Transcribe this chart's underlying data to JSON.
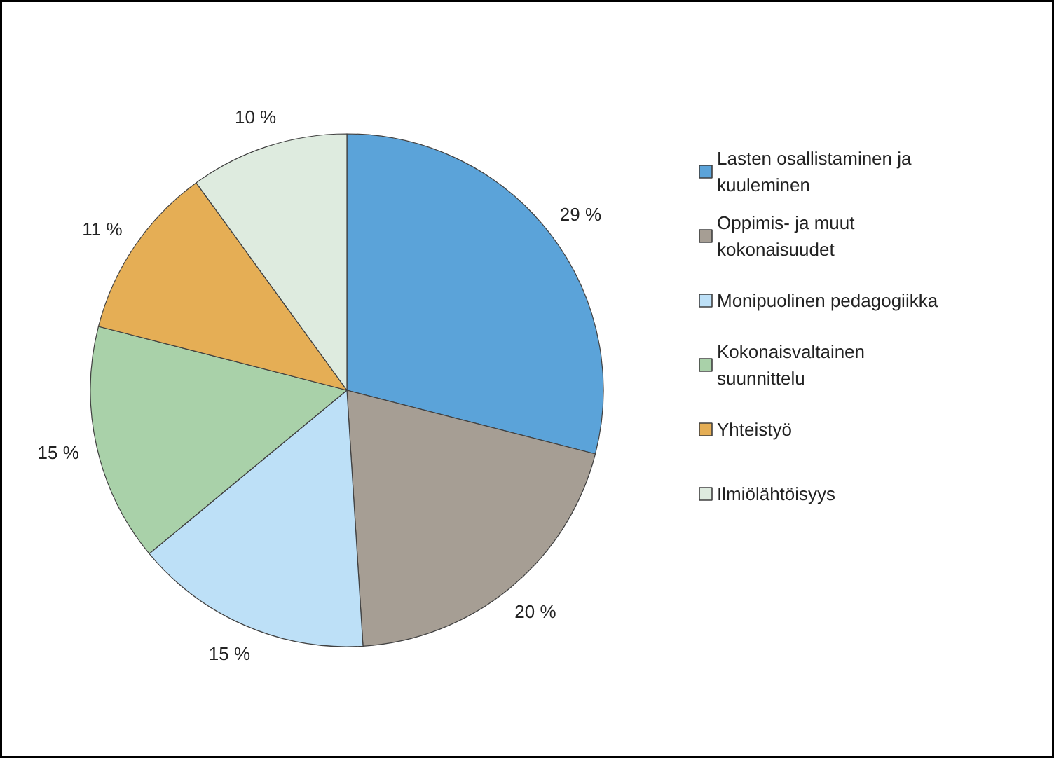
{
  "chart_data": {
    "type": "pie",
    "categories": [
      "Lasten osallistaminen ja kuuleminen",
      "Oppimis- ja muut kokonaisuudet",
      "Monipuolinen pedagogiikka",
      "Kokonaisvaltainen suunnittelu",
      "Yhteistyö",
      "Ilmiölähtöisyys"
    ],
    "values": [
      29,
      20,
      15,
      15,
      11,
      10
    ],
    "colors": [
      "#5ba3d9",
      "#a69e94",
      "#bde0f7",
      "#a9d1a9",
      "#e5ae55",
      "#deebdf"
    ],
    "value_labels": [
      "29 %",
      "20 %",
      "15 %",
      "15 %",
      "11 %",
      "10 %"
    ],
    "legend": "right"
  }
}
